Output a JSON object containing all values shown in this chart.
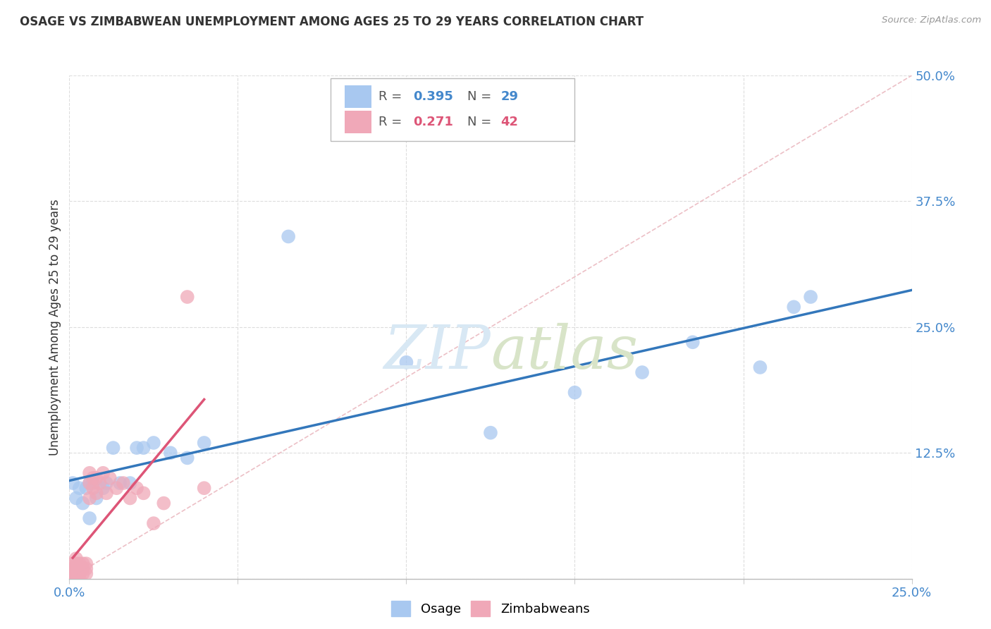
{
  "title": "OSAGE VS ZIMBABWEAN UNEMPLOYMENT AMONG AGES 25 TO 29 YEARS CORRELATION CHART",
  "source": "Source: ZipAtlas.com",
  "ylabel": "Unemployment Among Ages 25 to 29 years",
  "xlim": [
    0.0,
    0.25
  ],
  "ylim": [
    0.0,
    0.5
  ],
  "xticks": [
    0.0,
    0.05,
    0.1,
    0.15,
    0.2,
    0.25
  ],
  "yticks": [
    0.0,
    0.125,
    0.25,
    0.375,
    0.5
  ],
  "xticklabels": [
    "0.0%",
    "",
    "",
    "",
    "",
    "25.0%"
  ],
  "yticklabels": [
    "",
    "12.5%",
    "25.0%",
    "37.5%",
    "50.0%"
  ],
  "osage_R": "0.395",
  "osage_N": "29",
  "zimbabwean_R": "0.271",
  "zimbabwean_N": "42",
  "osage_color": "#a8c8f0",
  "zimbabwean_color": "#f0a8b8",
  "osage_line_color": "#3377bb",
  "zimbabwean_line_color": "#dd5577",
  "diagonal_color": "#ddaaaa",
  "watermark_zip": "ZIP",
  "watermark_atlas": "atlas",
  "background_color": "#ffffff",
  "osage_x": [
    0.001,
    0.002,
    0.003,
    0.004,
    0.005,
    0.006,
    0.006,
    0.007,
    0.008,
    0.01,
    0.011,
    0.013,
    0.015,
    0.018,
    0.02,
    0.022,
    0.025,
    0.03,
    0.035,
    0.04,
    0.065,
    0.1,
    0.125,
    0.15,
    0.17,
    0.185,
    0.205,
    0.215,
    0.22
  ],
  "osage_y": [
    0.095,
    0.08,
    0.09,
    0.075,
    0.09,
    0.06,
    0.095,
    0.095,
    0.08,
    0.09,
    0.095,
    0.13,
    0.095,
    0.095,
    0.13,
    0.13,
    0.135,
    0.125,
    0.12,
    0.135,
    0.34,
    0.215,
    0.145,
    0.185,
    0.205,
    0.235,
    0.21,
    0.27,
    0.28
  ],
  "zimbabwean_x": [
    0.001,
    0.001,
    0.001,
    0.001,
    0.001,
    0.002,
    0.002,
    0.002,
    0.002,
    0.002,
    0.002,
    0.003,
    0.003,
    0.003,
    0.003,
    0.003,
    0.004,
    0.004,
    0.004,
    0.005,
    0.005,
    0.005,
    0.006,
    0.006,
    0.006,
    0.007,
    0.007,
    0.008,
    0.008,
    0.009,
    0.01,
    0.011,
    0.012,
    0.014,
    0.016,
    0.018,
    0.02,
    0.022,
    0.025,
    0.028,
    0.035,
    0.04
  ],
  "zimbabwean_y": [
    0.0,
    0.005,
    0.008,
    0.01,
    0.015,
    0.0,
    0.005,
    0.01,
    0.012,
    0.015,
    0.02,
    0.0,
    0.005,
    0.01,
    0.012,
    0.015,
    0.005,
    0.01,
    0.015,
    0.005,
    0.01,
    0.015,
    0.08,
    0.095,
    0.105,
    0.09,
    0.1,
    0.085,
    0.1,
    0.095,
    0.105,
    0.085,
    0.1,
    0.09,
    0.095,
    0.08,
    0.09,
    0.085,
    0.055,
    0.075,
    0.28,
    0.09
  ]
}
